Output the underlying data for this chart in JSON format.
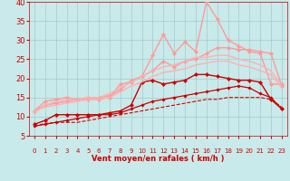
{
  "background_color": "#c8eaea",
  "grid_color": "#a8c8c8",
  "text_color": "#cc0000",
  "xlabel": "Vent moyen/en rafales ( km/h )",
  "xlim": [
    -0.5,
    23.5
  ],
  "ylim": [
    5,
    40
  ],
  "yticks": [
    5,
    10,
    15,
    20,
    25,
    30,
    35,
    40
  ],
  "xticks": [
    0,
    1,
    2,
    3,
    4,
    5,
    6,
    7,
    8,
    9,
    10,
    11,
    12,
    13,
    14,
    15,
    16,
    17,
    18,
    19,
    20,
    21,
    22,
    23
  ],
  "lines": [
    {
      "x": [
        0,
        1,
        2,
        3,
        4,
        5,
        6,
        7,
        8,
        9,
        10,
        11,
        12,
        13,
        14,
        15,
        16,
        17,
        18,
        19,
        20,
        21,
        22,
        23
      ],
      "y": [
        7.5,
        8.2,
        8.5,
        8.5,
        8.5,
        9.0,
        9.5,
        10.0,
        10.5,
        11.0,
        11.5,
        12.0,
        12.5,
        13.0,
        13.5,
        14.0,
        14.5,
        14.5,
        15.0,
        15.0,
        15.0,
        15.0,
        14.5,
        12.5
      ],
      "color": "#cc0000",
      "linewidth": 0.8,
      "linestyle": "--",
      "marker": null
    },
    {
      "x": [
        0,
        1,
        2,
        3,
        4,
        5,
        6,
        7,
        8,
        9,
        10,
        11,
        12,
        13,
        14,
        15,
        16,
        17,
        18,
        19,
        20,
        21,
        22,
        23
      ],
      "y": [
        7.5,
        8.0,
        8.5,
        9.0,
        9.5,
        10.0,
        10.5,
        10.5,
        11.0,
        12.0,
        13.0,
        14.0,
        14.5,
        15.0,
        15.5,
        16.0,
        16.5,
        17.0,
        17.5,
        18.0,
        17.5,
        16.0,
        15.0,
        12.0
      ],
      "color": "#cc0000",
      "linewidth": 0.9,
      "linestyle": "-",
      "marker": "D",
      "markersize": 1.8
    },
    {
      "x": [
        0,
        1,
        2,
        3,
        4,
        5,
        6,
        7,
        8,
        9,
        10,
        11,
        12,
        13,
        14,
        15,
        16,
        17,
        18,
        19,
        20,
        21,
        22,
        23
      ],
      "y": [
        8.0,
        9.0,
        10.5,
        10.5,
        10.5,
        10.5,
        10.5,
        11.0,
        11.5,
        13.0,
        19.0,
        19.5,
        18.5,
        19.0,
        19.5,
        21.0,
        21.0,
        20.5,
        20.0,
        19.5,
        19.5,
        19.0,
        14.5,
        12.0
      ],
      "color": "#cc0000",
      "linewidth": 1.0,
      "linestyle": "-",
      "marker": "D",
      "markersize": 2.2
    },
    {
      "x": [
        0,
        1,
        2,
        3,
        4,
        5,
        6,
        7,
        8,
        9,
        10,
        11,
        12,
        13,
        14,
        15,
        16,
        17,
        18,
        19,
        20,
        21,
        22,
        23
      ],
      "y": [
        11.5,
        14.0,
        14.5,
        15.0,
        14.5,
        14.5,
        14.5,
        15.0,
        18.5,
        19.0,
        20.5,
        26.0,
        31.5,
        26.5,
        29.5,
        27.0,
        40.0,
        35.5,
        30.0,
        28.5,
        27.0,
        26.5,
        18.5,
        18.5
      ],
      "color": "#ff9999",
      "linewidth": 1.0,
      "linestyle": "-",
      "marker": "D",
      "markersize": 2.2
    },
    {
      "x": [
        0,
        1,
        2,
        3,
        4,
        5,
        6,
        7,
        8,
        9,
        10,
        11,
        12,
        13,
        14,
        15,
        16,
        17,
        18,
        19,
        20,
        21,
        22,
        23
      ],
      "y": [
        11.5,
        13.0,
        13.5,
        14.0,
        14.5,
        15.0,
        15.0,
        15.5,
        17.0,
        19.5,
        20.5,
        22.0,
        24.5,
        23.0,
        24.5,
        25.0,
        26.5,
        28.0,
        28.0,
        27.5,
        27.5,
        27.0,
        26.5,
        18.0
      ],
      "color": "#ff9999",
      "linewidth": 1.0,
      "linestyle": "-",
      "marker": "D",
      "markersize": 2.2
    },
    {
      "x": [
        0,
        1,
        2,
        3,
        4,
        5,
        6,
        7,
        8,
        9,
        10,
        11,
        12,
        13,
        14,
        15,
        16,
        17,
        18,
        19,
        20,
        21,
        22,
        23
      ],
      "y": [
        11.0,
        13.0,
        14.0,
        14.5,
        14.5,
        15.0,
        15.0,
        16.0,
        17.5,
        19.0,
        20.5,
        22.0,
        23.0,
        23.5,
        24.5,
        25.5,
        25.5,
        26.0,
        26.0,
        25.0,
        24.5,
        23.5,
        22.0,
        18.0
      ],
      "color": "#ffb0b0",
      "linewidth": 1.0,
      "linestyle": "-",
      "marker": null
    },
    {
      "x": [
        0,
        1,
        2,
        3,
        4,
        5,
        6,
        7,
        8,
        9,
        10,
        11,
        12,
        13,
        14,
        15,
        16,
        17,
        18,
        19,
        20,
        21,
        22,
        23
      ],
      "y": [
        11.5,
        12.5,
        13.0,
        13.5,
        14.0,
        14.5,
        14.5,
        15.0,
        16.5,
        18.0,
        19.0,
        20.5,
        21.5,
        22.0,
        22.5,
        23.5,
        24.0,
        24.5,
        24.5,
        23.5,
        23.0,
        22.0,
        21.0,
        17.5
      ],
      "color": "#ffb0b0",
      "linewidth": 1.0,
      "linestyle": "-",
      "marker": null
    }
  ],
  "wind_arrow_color": "#cc0000",
  "tick_fontsize": 5,
  "ylabel_fontsize": 5,
  "xlabel_fontsize": 6
}
